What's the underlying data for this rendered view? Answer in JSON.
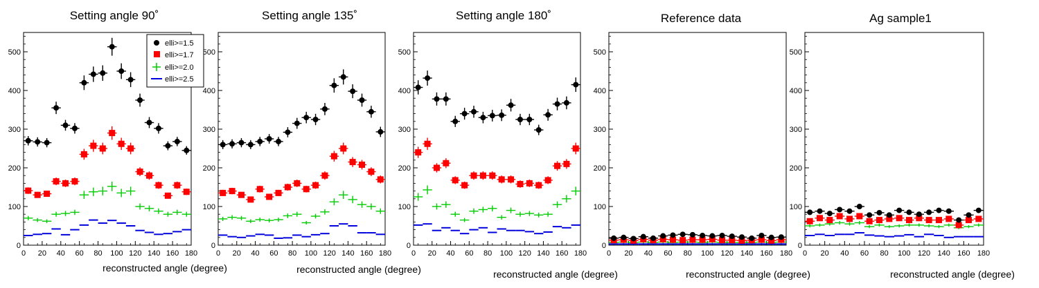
{
  "chart_data": [
    {
      "type": "scatter",
      "title": "Setting angle 90˚",
      "xlabel": "reconstructed angle (degree)",
      "ylabel": "",
      "xlim": [
        0,
        180
      ],
      "ylim": [
        0,
        550
      ],
      "x_ticks": [
        0,
        20,
        40,
        60,
        80,
        100,
        120,
        140,
        160,
        180
      ],
      "y_ticks": [
        0,
        100,
        200,
        300,
        400,
        500
      ],
      "legend": {
        "position": "top-right",
        "entries": [
          "elli>=1.5",
          "elli>=1.7",
          "elli>=2.0",
          "elli>=2.5"
        ]
      },
      "x": [
        5,
        15,
        25,
        35,
        45,
        55,
        65,
        75,
        85,
        95,
        105,
        115,
        125,
        135,
        145,
        155,
        165,
        175
      ],
      "series": [
        {
          "name": "elli>=1.5",
          "values": [
            270,
            267,
            265,
            355,
            310,
            302,
            420,
            442,
            445,
            513,
            450,
            428,
            375,
            317,
            302,
            257,
            268,
            245
          ]
        },
        {
          "name": "elli>=1.7",
          "values": [
            141,
            130,
            133,
            165,
            160,
            165,
            235,
            257,
            250,
            290,
            262,
            250,
            190,
            180,
            155,
            128,
            155,
            138
          ]
        },
        {
          "name": "elli>=2.0",
          "values": [
            70,
            65,
            62,
            80,
            82,
            85,
            130,
            138,
            140,
            152,
            135,
            140,
            100,
            95,
            88,
            80,
            85,
            80
          ]
        },
        {
          "name": "elli>=2.5",
          "values": [
            25,
            28,
            30,
            42,
            27,
            40,
            52,
            65,
            57,
            64,
            57,
            50,
            38,
            33,
            28,
            30,
            35,
            40
          ]
        }
      ]
    },
    {
      "type": "scatter",
      "title": "Setting angle 135˚",
      "xlabel": "reconstructed angle (degree)",
      "ylabel": "",
      "xlim": [
        0,
        180
      ],
      "ylim": [
        0,
        550
      ],
      "x_ticks": [
        0,
        20,
        40,
        60,
        80,
        100,
        120,
        140,
        160,
        180
      ],
      "y_ticks": [
        0,
        100,
        200,
        300,
        400,
        500
      ],
      "x": [
        5,
        15,
        25,
        35,
        45,
        55,
        65,
        75,
        85,
        95,
        105,
        115,
        125,
        135,
        145,
        155,
        165,
        175
      ],
      "series": [
        {
          "name": "elli>=1.5",
          "values": [
            260,
            262,
            265,
            260,
            268,
            275,
            268,
            292,
            315,
            330,
            325,
            352,
            413,
            435,
            398,
            375,
            345,
            293
          ]
        },
        {
          "name": "elli>=1.7",
          "values": [
            135,
            140,
            130,
            118,
            145,
            125,
            135,
            150,
            160,
            145,
            155,
            180,
            230,
            250,
            215,
            208,
            190,
            170
          ]
        },
        {
          "name": "elli>=2.0",
          "values": [
            68,
            72,
            70,
            62,
            66,
            64,
            66,
            76,
            80,
            58,
            75,
            86,
            112,
            130,
            118,
            105,
            100,
            88
          ]
        },
        {
          "name": "elli>=2.5",
          "values": [
            26,
            22,
            20,
            24,
            28,
            26,
            18,
            19,
            26,
            22,
            27,
            30,
            50,
            55,
            50,
            32,
            32,
            28
          ]
        }
      ]
    },
    {
      "type": "scatter",
      "title": "Setting angle 180˚",
      "xlabel": "reconstructed angle (degree)",
      "ylabel": "",
      "xlim": [
        0,
        180
      ],
      "ylim": [
        0,
        550
      ],
      "x_ticks": [
        0,
        20,
        40,
        60,
        80,
        100,
        120,
        140,
        160,
        180
      ],
      "y_ticks": [
        0,
        100,
        200,
        300,
        400,
        500
      ],
      "x": [
        5,
        15,
        25,
        35,
        45,
        55,
        65,
        75,
        85,
        95,
        105,
        115,
        125,
        135,
        145,
        155,
        165,
        175
      ],
      "series": [
        {
          "name": "elli>=1.5",
          "values": [
            408,
            432,
            378,
            378,
            320,
            340,
            345,
            330,
            335,
            336,
            362,
            325,
            325,
            298,
            337,
            365,
            368,
            415
          ]
        },
        {
          "name": "elli>=1.7",
          "values": [
            240,
            262,
            200,
            212,
            168,
            155,
            180,
            180,
            180,
            170,
            170,
            158,
            160,
            155,
            168,
            205,
            210,
            250
          ]
        },
        {
          "name": "elli>=2.0",
          "values": [
            125,
            143,
            100,
            105,
            80,
            65,
            88,
            92,
            95,
            72,
            90,
            80,
            82,
            78,
            80,
            105,
            120,
            140
          ]
        },
        {
          "name": "elli>=2.5",
          "values": [
            52,
            55,
            38,
            45,
            38,
            30,
            40,
            45,
            33,
            42,
            38,
            38,
            35,
            30,
            34,
            48,
            45,
            52
          ]
        }
      ]
    },
    {
      "type": "scatter",
      "title": "Reference data",
      "xlabel": "reconstructed angle (degree)",
      "ylabel": "",
      "xlim": [
        0,
        180
      ],
      "ylim": [
        0,
        550
      ],
      "x_ticks": [
        0,
        20,
        40,
        60,
        80,
        100,
        120,
        140,
        160,
        180
      ],
      "y_ticks": [
        0,
        100,
        200,
        300,
        400,
        500
      ],
      "x": [
        5,
        15,
        25,
        35,
        45,
        55,
        65,
        75,
        85,
        95,
        105,
        115,
        125,
        135,
        145,
        155,
        165,
        175
      ],
      "series": [
        {
          "name": "elli>=1.5",
          "values": [
            18,
            20,
            17,
            22,
            18,
            24,
            26,
            28,
            27,
            25,
            24,
            25,
            23,
            21,
            18,
            25,
            20,
            21
          ]
        },
        {
          "name": "elli>=1.7",
          "values": [
            13,
            14,
            12,
            15,
            13,
            15,
            14,
            13,
            14,
            14,
            15,
            13,
            13,
            12,
            13,
            14,
            12,
            14
          ]
        },
        {
          "name": "elli>=2.0",
          "values": [
            7,
            8,
            7,
            8,
            7,
            8,
            7,
            8,
            8,
            7,
            8,
            7,
            7,
            7,
            7,
            8,
            7,
            8
          ]
        },
        {
          "name": "elli>=2.5",
          "values": [
            3,
            3,
            3,
            3,
            3,
            3,
            3,
            3,
            3,
            3,
            3,
            3,
            3,
            3,
            3,
            3,
            3,
            3
          ]
        }
      ]
    },
    {
      "type": "scatter",
      "title": "Ag sample1",
      "xlabel": "reconstructed angle (degree)",
      "ylabel": "",
      "xlim": [
        0,
        180
      ],
      "ylim": [
        0,
        550
      ],
      "x_ticks": [
        0,
        20,
        40,
        60,
        80,
        100,
        120,
        140,
        160,
        180
      ],
      "y_ticks": [
        0,
        100,
        200,
        300,
        400,
        500
      ],
      "x": [
        5,
        15,
        25,
        35,
        45,
        55,
        65,
        75,
        85,
        95,
        105,
        115,
        125,
        135,
        145,
        155,
        165,
        175
      ],
      "series": [
        {
          "name": "elli>=1.5",
          "values": [
            85,
            88,
            82,
            92,
            88,
            100,
            78,
            84,
            78,
            90,
            85,
            80,
            85,
            90,
            88,
            65,
            78,
            90
          ]
        },
        {
          "name": "elli>=1.7",
          "values": [
            62,
            70,
            65,
            75,
            68,
            75,
            62,
            65,
            68,
            70,
            65,
            70,
            65,
            65,
            68,
            52,
            65,
            68
          ]
        },
        {
          "name": "elli>=2.0",
          "values": [
            50,
            52,
            55,
            58,
            55,
            58,
            48,
            52,
            48,
            50,
            52,
            52,
            50,
            48,
            52,
            45,
            48,
            52
          ]
        },
        {
          "name": "elli>=2.5",
          "values": [
            25,
            28,
            25,
            28,
            28,
            32,
            26,
            24,
            22,
            24,
            27,
            22,
            28,
            25,
            20,
            22,
            22,
            22
          ]
        }
      ]
    }
  ],
  "colors": {
    "elli>=1.5": "#000000",
    "elli>=1.7": "#ff0000",
    "elli>=2.0": "#00cc00",
    "elli>=2.5": "#0000dd"
  }
}
